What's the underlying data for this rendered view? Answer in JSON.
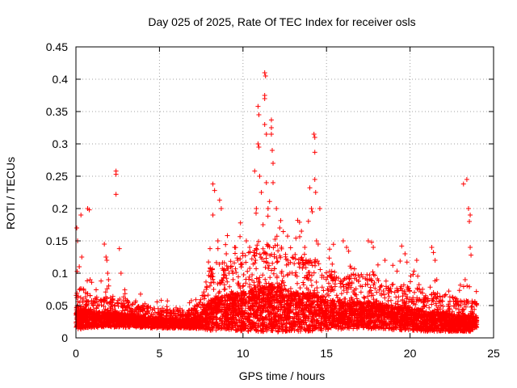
{
  "chart_data": {
    "type": "scatter",
    "title": "Day 025 of 2025, Rate Of TEC Index for receiver osls",
    "xlabel": "GPS time / hours",
    "ylabel": "ROTI / TECUs",
    "xlim": [
      0,
      25
    ],
    "ylim": [
      0,
      0.45
    ],
    "x_ticks": [
      0,
      5,
      10,
      15,
      20,
      25
    ],
    "y_ticks": [
      0,
      0.05,
      0.1,
      0.15,
      0.2,
      0.25,
      0.3,
      0.35,
      0.4,
      0.45
    ],
    "x_tick_labels": [
      "0",
      "5",
      "10",
      "15",
      "20",
      "25"
    ],
    "y_tick_labels": [
      "0",
      "0.05",
      "0.1",
      "0.15",
      "0.2",
      "0.25",
      "0.3",
      "0.35",
      "0.4",
      "0.45"
    ],
    "grid": true,
    "marker": "+",
    "marker_color": "#ff0000",
    "x_range_of_samples": [
      0,
      24
    ],
    "background_envelope": {
      "x": [
        0,
        0.5,
        1,
        2,
        3,
        4,
        5,
        6,
        7,
        7.5,
        8,
        9,
        10,
        11,
        12,
        13,
        14,
        15,
        16,
        17,
        18,
        19,
        20,
        21,
        22,
        23,
        24
      ],
      "y_median": [
        0.03,
        0.03,
        0.028,
        0.028,
        0.027,
        0.025,
        0.022,
        0.022,
        0.022,
        0.026,
        0.035,
        0.04,
        0.04,
        0.045,
        0.045,
        0.04,
        0.04,
        0.035,
        0.035,
        0.035,
        0.035,
        0.03,
        0.03,
        0.025,
        0.025,
        0.022,
        0.022
      ],
      "y_spread": [
        0.03,
        0.025,
        0.02,
        0.02,
        0.018,
        0.015,
        0.012,
        0.012,
        0.012,
        0.02,
        0.04,
        0.045,
        0.05,
        0.06,
        0.06,
        0.05,
        0.05,
        0.04,
        0.035,
        0.035,
        0.035,
        0.03,
        0.03,
        0.025,
        0.025,
        0.02,
        0.02
      ]
    },
    "highlighted_points": [
      {
        "x": 0.05,
        "y": 0.17
      },
      {
        "x": 0.1,
        "y": 0.15
      },
      {
        "x": 0.2,
        "y": 0.11
      },
      {
        "x": 0.3,
        "y": 0.19
      },
      {
        "x": 0.35,
        "y": 0.125
      },
      {
        "x": 0.7,
        "y": 0.2
      },
      {
        "x": 0.8,
        "y": 0.198
      },
      {
        "x": 0.85,
        "y": 0.09
      },
      {
        "x": 1.7,
        "y": 0.145
      },
      {
        "x": 1.8,
        "y": 0.125
      },
      {
        "x": 1.85,
        "y": 0.12
      },
      {
        "x": 1.9,
        "y": 0.1
      },
      {
        "x": 1.95,
        "y": 0.09
      },
      {
        "x": 2.4,
        "y": 0.258
      },
      {
        "x": 2.4,
        "y": 0.253
      },
      {
        "x": 2.4,
        "y": 0.222
      },
      {
        "x": 2.6,
        "y": 0.138
      },
      {
        "x": 2.7,
        "y": 0.1
      },
      {
        "x": 8.2,
        "y": 0.238
      },
      {
        "x": 8.3,
        "y": 0.228
      },
      {
        "x": 8.2,
        "y": 0.19
      },
      {
        "x": 8.5,
        "y": 0.15
      },
      {
        "x": 8.5,
        "y": 0.138
      },
      {
        "x": 8.6,
        "y": 0.213
      },
      {
        "x": 8.7,
        "y": 0.2
      },
      {
        "x": 9.0,
        "y": 0.13
      },
      {
        "x": 9.5,
        "y": 0.14
      },
      {
        "x": 10.2,
        "y": 0.15
      },
      {
        "x": 10.4,
        "y": 0.14
      },
      {
        "x": 10.7,
        "y": 0.258
      },
      {
        "x": 10.8,
        "y": 0.2
      },
      {
        "x": 10.9,
        "y": 0.358
      },
      {
        "x": 10.95,
        "y": 0.345
      },
      {
        "x": 10.9,
        "y": 0.3
      },
      {
        "x": 10.95,
        "y": 0.295
      },
      {
        "x": 11.0,
        "y": 0.25
      },
      {
        "x": 11.1,
        "y": 0.225
      },
      {
        "x": 11.2,
        "y": 0.175
      },
      {
        "x": 11.3,
        "y": 0.41
      },
      {
        "x": 11.35,
        "y": 0.405
      },
      {
        "x": 11.3,
        "y": 0.375
      },
      {
        "x": 11.3,
        "y": 0.37
      },
      {
        "x": 11.3,
        "y": 0.33
      },
      {
        "x": 11.4,
        "y": 0.315
      },
      {
        "x": 11.4,
        "y": 0.24
      },
      {
        "x": 11.5,
        "y": 0.2
      },
      {
        "x": 11.7,
        "y": 0.337
      },
      {
        "x": 11.7,
        "y": 0.325
      },
      {
        "x": 11.7,
        "y": 0.315
      },
      {
        "x": 11.75,
        "y": 0.29
      },
      {
        "x": 11.8,
        "y": 0.27
      },
      {
        "x": 11.8,
        "y": 0.24
      },
      {
        "x": 12.0,
        "y": 0.2
      },
      {
        "x": 12.2,
        "y": 0.17
      },
      {
        "x": 12.3,
        "y": 0.14
      },
      {
        "x": 13.5,
        "y": 0.165
      },
      {
        "x": 13.7,
        "y": 0.14
      },
      {
        "x": 14.0,
        "y": 0.232
      },
      {
        "x": 14.1,
        "y": 0.2
      },
      {
        "x": 14.15,
        "y": 0.195
      },
      {
        "x": 14.25,
        "y": 0.315
      },
      {
        "x": 14.3,
        "y": 0.31
      },
      {
        "x": 14.3,
        "y": 0.287
      },
      {
        "x": 14.3,
        "y": 0.245
      },
      {
        "x": 14.35,
        "y": 0.225
      },
      {
        "x": 14.4,
        "y": 0.15
      },
      {
        "x": 14.5,
        "y": 0.145
      },
      {
        "x": 14.6,
        "y": 0.2
      },
      {
        "x": 16.0,
        "y": 0.15
      },
      {
        "x": 16.2,
        "y": 0.14
      },
      {
        "x": 17.5,
        "y": 0.15
      },
      {
        "x": 17.7,
        "y": 0.148
      },
      {
        "x": 17.8,
        "y": 0.14
      },
      {
        "x": 18.5,
        "y": 0.12
      },
      {
        "x": 19.5,
        "y": 0.142
      },
      {
        "x": 19.7,
        "y": 0.13
      },
      {
        "x": 20.4,
        "y": 0.12
      },
      {
        "x": 21.3,
        "y": 0.14
      },
      {
        "x": 21.4,
        "y": 0.132
      },
      {
        "x": 21.5,
        "y": 0.12
      },
      {
        "x": 21.6,
        "y": 0.09
      },
      {
        "x": 23.2,
        "y": 0.238
      },
      {
        "x": 23.4,
        "y": 0.245
      },
      {
        "x": 23.5,
        "y": 0.2
      },
      {
        "x": 23.6,
        "y": 0.19
      },
      {
        "x": 23.55,
        "y": 0.18
      },
      {
        "x": 23.6,
        "y": 0.14
      },
      {
        "x": 23.65,
        "y": 0.128
      },
      {
        "x": 23.3,
        "y": 0.09
      }
    ]
  }
}
